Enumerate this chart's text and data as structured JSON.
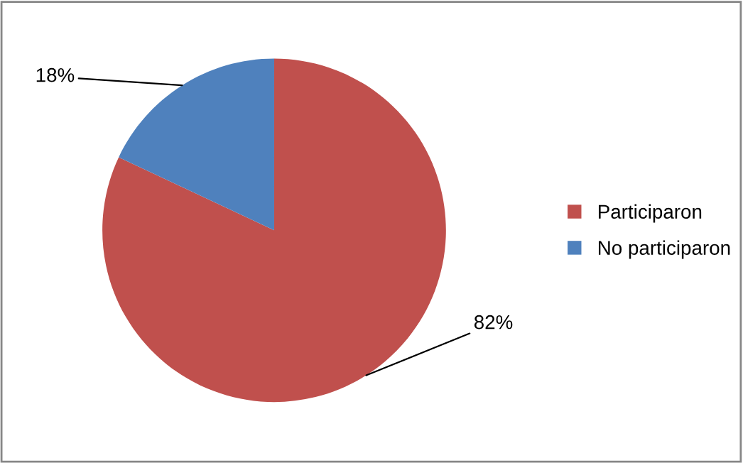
{
  "chart_data": {
    "type": "pie",
    "categories": [
      "Participaron",
      "No participaron"
    ],
    "values": [
      82,
      18
    ],
    "colors": [
      "#c0504d",
      "#4f81bd"
    ],
    "value_labels": [
      "82%",
      "18%"
    ],
    "legend": "right"
  }
}
